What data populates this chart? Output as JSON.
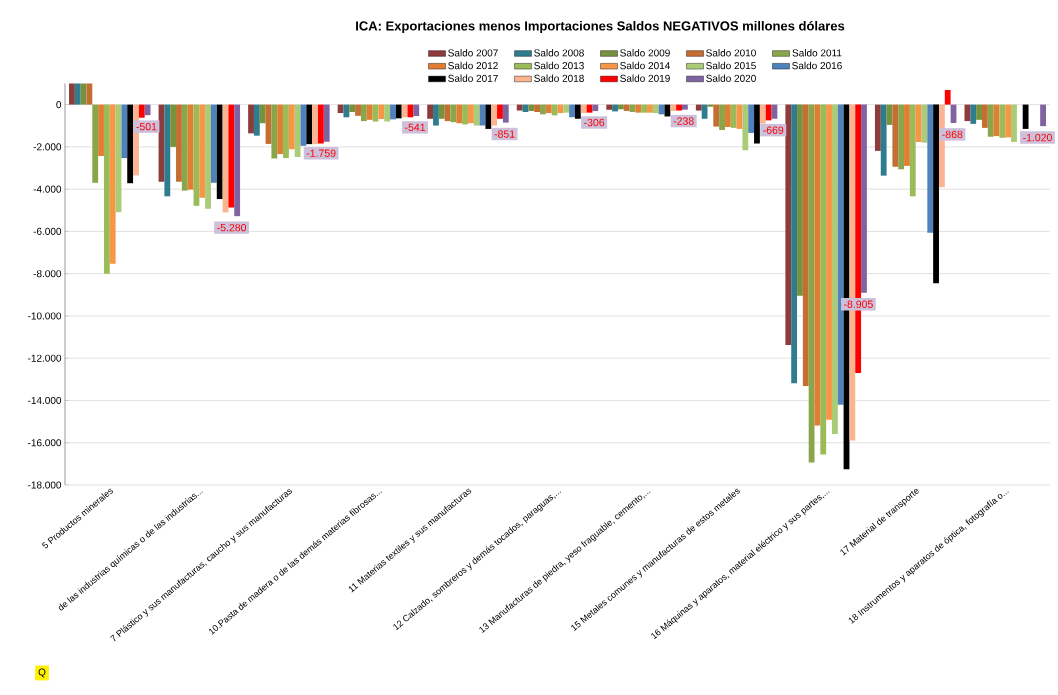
{
  "chart_data": {
    "type": "bar",
    "title": "ICA: Exportaciones  menos Importaciones Saldos NEGATIVOS millones dólares",
    "categories": [
      "5 Productos minerales",
      "de las industrias químicas o de las industrias...",
      "7 Plástico y sus manufacturas, caucho y sus manufacturas",
      "10.Pasta de madera o de las demás materias fibrosas...",
      "11 Materias textiles y sus manufacturas",
      "12 Calzado, sombreros y demás tocados, paraguas,...",
      "13 Manufacturas de piedra, yeso fraguable, cemento,...",
      "15 Metales comunes y manufacturas de estos metales",
      "16 Máquinas y aparatos, material eléctrico y sus partes,...",
      "17 Material de transporte",
      "18 Instrumentos y aparatos de óptica, fotografía o..."
    ],
    "series": [
      {
        "name": "Saldo 2007",
        "color": "#8e3b3b",
        "values": [
          1000,
          -3650,
          -1360,
          -400,
          -670,
          -280,
          -245,
          -280,
          -11370,
          -2190,
          -780
        ]
      },
      {
        "name": "Saldo 2008",
        "color": "#2f7c8f",
        "values": [
          1000,
          -4340,
          -1470,
          -600,
          -990,
          -350,
          -320,
          -670,
          -13180,
          -3360,
          -910
        ]
      },
      {
        "name": "Saldo 2009",
        "color": "#76923c",
        "values": [
          1000,
          -2000,
          -880,
          -350,
          -670,
          -300,
          -220,
          -100,
          -9040,
          -960,
          -720
        ]
      },
      {
        "name": "Saldo 2010",
        "color": "#c56e32",
        "values": [
          1000,
          -3650,
          -1860,
          -530,
          -780,
          -350,
          -300,
          -1040,
          -13320,
          -2940,
          -1100
        ]
      },
      {
        "name": "Saldo 2011",
        "color": "#8aa64a",
        "values": [
          -3700,
          -4070,
          -2550,
          -780,
          -830,
          -460,
          -350,
          -1200,
          -16940,
          -3060,
          -1520
        ]
      },
      {
        "name": "Saldo 2012",
        "color": "#e07f34",
        "values": [
          -2430,
          -4020,
          -2340,
          -720,
          -880,
          -400,
          -380,
          -1060,
          -15180,
          -2900,
          -1490
        ]
      },
      {
        "name": "Saldo 2013",
        "color": "#9bbb59",
        "values": [
          -8000,
          -4790,
          -2530,
          -800,
          -940,
          -510,
          -380,
          -1100,
          -16560,
          -4340,
          -1570
        ]
      },
      {
        "name": "Saldo 2014",
        "color": "#f79646",
        "values": [
          -7530,
          -4410,
          -2110,
          -680,
          -880,
          -400,
          -380,
          -1150,
          -14910,
          -1770,
          -1550
        ]
      },
      {
        "name": "Saldo 2015",
        "color": "#aacc77",
        "values": [
          -5090,
          -4930,
          -2480,
          -800,
          -990,
          -380,
          -400,
          -2160,
          -15590,
          -1800,
          -1770
        ]
      },
      {
        "name": "Saldo 2016",
        "color": "#4f81bd",
        "values": [
          -2530,
          -3700,
          -1950,
          -700,
          -990,
          -600,
          -460,
          -1340,
          -14200,
          -6060,
          null
        ]
      },
      {
        "name": "Saldo 2017",
        "color": "#000000",
        "values": [
          -3720,
          -4470,
          -1870,
          -650,
          -1150,
          -670,
          -560,
          -1840,
          -17260,
          -8450,
          -1150
        ]
      },
      {
        "name": "Saldo 2018",
        "color": "#fab48f",
        "values": [
          -3350,
          -5100,
          -1870,
          -600,
          -990,
          -400,
          -300,
          -900,
          -15900,
          -3910,
          null
        ]
      },
      {
        "name": "Saldo 2019",
        "color": "#ff0000",
        "values": [
          -620,
          -4870,
          -1840,
          -600,
          -670,
          -380,
          -280,
          -745,
          -12700,
          690,
          null
        ]
      },
      {
        "name": "Saldo 2020",
        "color": "#8064a2",
        "values": [
          -501,
          -5280,
          -1759,
          -541,
          -851,
          -306,
          -238,
          -669,
          -8905,
          -868,
          -1020
        ],
        "value_labels": [
          "-501",
          "-5.280",
          "-1.759",
          "-541",
          "-851",
          "-306",
          "-238",
          "-669",
          "-8.905",
          "-868",
          "-1.020"
        ]
      }
    ],
    "ylim": [
      -18000,
      1000
    ],
    "yticks": [
      {
        "value": -18000,
        "label": "-18.000"
      },
      {
        "value": -16000,
        "label": "-16.000"
      },
      {
        "value": -14000,
        "label": "-14.000"
      },
      {
        "value": -12000,
        "label": "-12.000"
      },
      {
        "value": -10000,
        "label": "-10.000"
      },
      {
        "value": -8000,
        "label": "-8.000"
      },
      {
        "value": -6000,
        "label": "-6.000"
      },
      {
        "value": -4000,
        "label": "-4.000"
      },
      {
        "value": -2000,
        "label": "-2.000"
      },
      {
        "value": 0,
        "label": "0"
      }
    ],
    "grid": "y",
    "legend": "top",
    "annotations": [
      "Q"
    ]
  }
}
